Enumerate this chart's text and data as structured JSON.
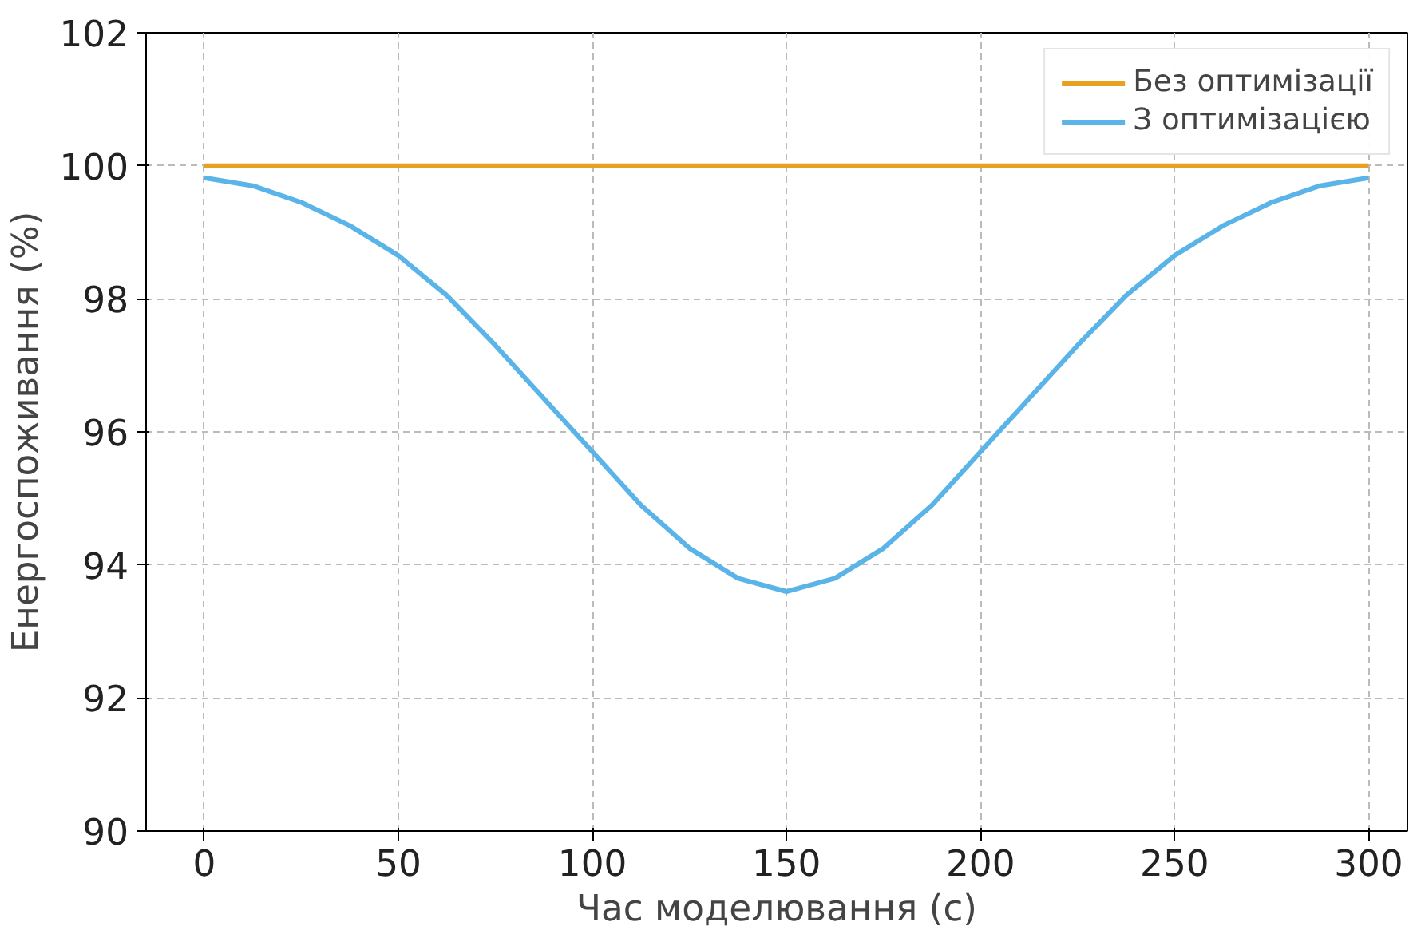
{
  "chart_data": {
    "type": "line",
    "xlabel": "Час моделювання (с)",
    "ylabel": "Енергоспоживання (%)",
    "x": [
      0,
      12.5,
      25,
      37.5,
      50,
      62.5,
      75,
      87.5,
      100,
      112.5,
      125,
      137.5,
      150,
      162.5,
      175,
      187.5,
      200,
      212.5,
      225,
      237.5,
      250,
      262.5,
      275,
      287.5,
      300
    ],
    "series": [
      {
        "name": "Без оптимізації",
        "color": "#e8a020",
        "values": [
          100,
          100,
          100,
          100,
          100,
          100,
          100,
          100,
          100,
          100,
          100,
          100,
          100,
          100,
          100,
          100,
          100,
          100,
          100,
          100,
          100,
          100,
          100,
          100,
          100
        ]
      },
      {
        "name": "З оптимізацією",
        "color": "#5ab4e8",
        "values": [
          99.82,
          99.7,
          99.45,
          99.1,
          98.65,
          98.05,
          97.3,
          96.5,
          95.7,
          94.9,
          94.25,
          93.8,
          93.6,
          93.8,
          94.25,
          94.9,
          95.7,
          96.5,
          97.3,
          98.05,
          98.65,
          99.1,
          99.45,
          99.7,
          99.82
        ]
      }
    ],
    "xlim": [
      -15,
      310
    ],
    "ylim": [
      90,
      102
    ],
    "xticks": [
      0,
      50,
      100,
      150,
      200,
      250,
      300
    ],
    "yticks": [
      90,
      92,
      94,
      96,
      98,
      100,
      102
    ],
    "grid": true,
    "legend": "top right",
    "line_style": "solid",
    "marker": "none"
  }
}
